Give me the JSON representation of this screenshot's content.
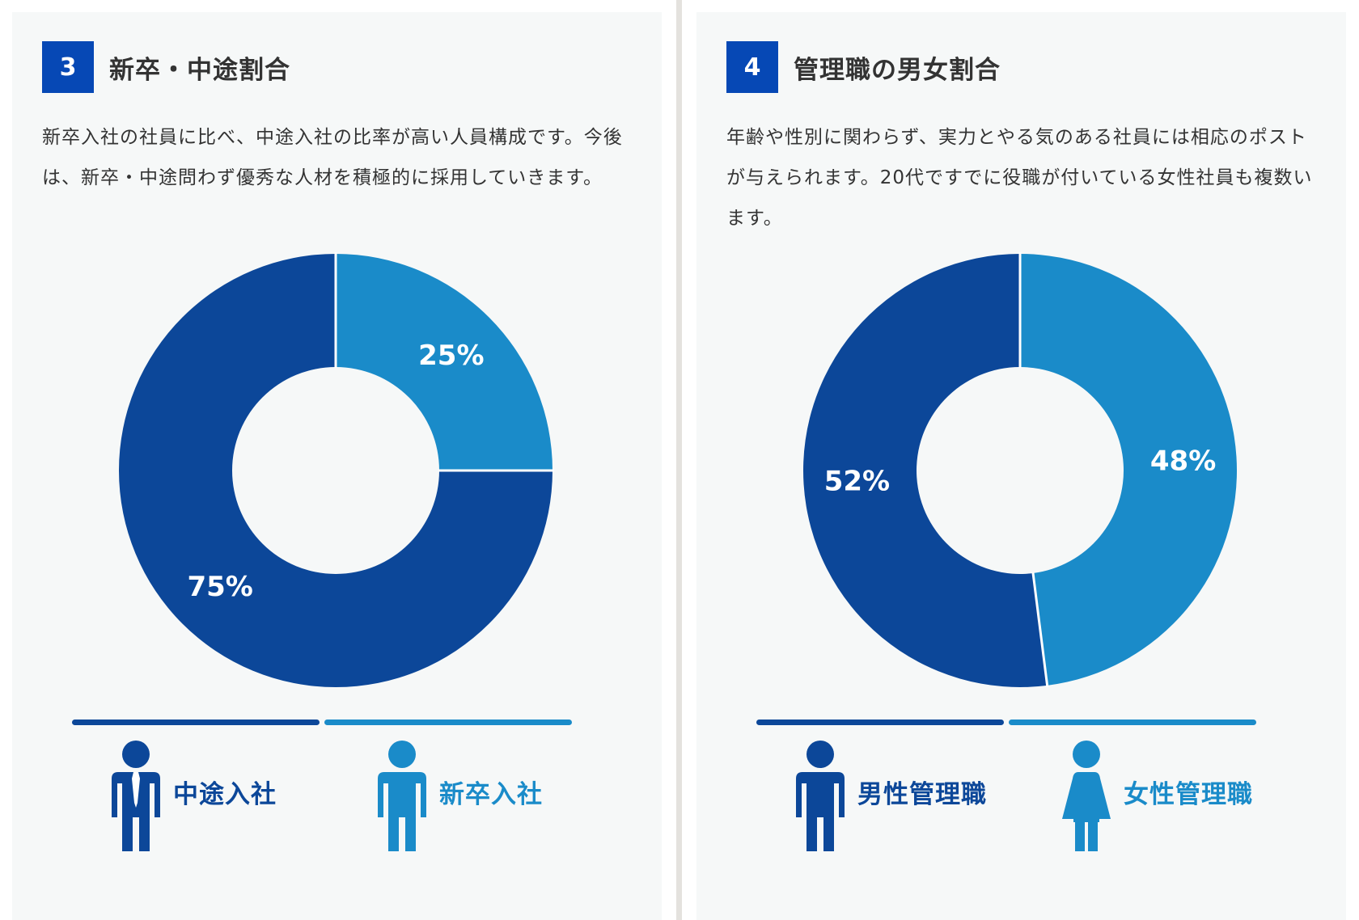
{
  "colors": {
    "dark": "#0c4799",
    "light": "#1a8bc9",
    "badge": "#0648b5"
  },
  "panels": [
    {
      "number": "3",
      "title": "新卒・中途割合",
      "description": "新卒入社の社員に比べ、中途入社の比率が高い人員構成です。今後は、新卒・中途問わず優秀な人材を積極的に採用していきます。",
      "legend": [
        {
          "label": "中途入社",
          "icon": "man-with-tie-icon"
        },
        {
          "label": "新卒入社",
          "icon": "man-icon"
        }
      ]
    },
    {
      "number": "4",
      "title": "管理職の男女割合",
      "description": "年齢や性別に関わらず、実力とやる気のある社員には相応のポストが与えられます。20代ですでに役職が付いている女性社員も複数います。",
      "legend": [
        {
          "label": "男性管理職",
          "icon": "man-icon"
        },
        {
          "label": "女性管理職",
          "icon": "woman-icon"
        }
      ]
    }
  ],
  "chart_data": [
    {
      "type": "pie",
      "title": "新卒・中途割合",
      "labels": [
        "新卒入社",
        "中途入社"
      ],
      "values": [
        25,
        75
      ],
      "value_labels": [
        "25%",
        "75%"
      ],
      "colors": [
        "#1a8bc9",
        "#0c4799"
      ],
      "start": "12 o'clock",
      "direction": "clockwise",
      "donut": true,
      "legend": "bottom"
    },
    {
      "type": "pie",
      "title": "管理職の男女割合",
      "labels": [
        "女性管理職",
        "男性管理職"
      ],
      "values": [
        48,
        52
      ],
      "value_labels": [
        "48%",
        "52%"
      ],
      "colors": [
        "#1a8bc9",
        "#0c4799"
      ],
      "start": "12 o'clock",
      "direction": "clockwise",
      "donut": true,
      "legend": "bottom"
    }
  ]
}
